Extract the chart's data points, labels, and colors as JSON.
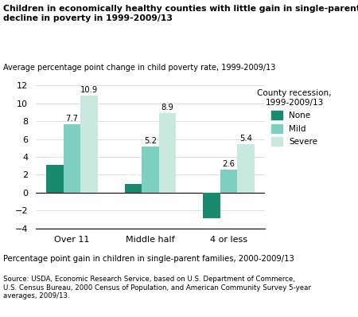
{
  "title": "Children in economically healthy counties with little gain in single-parent families had a\ndecline in poverty in 1999-2009/13",
  "ylabel": "Average percentage point change in child poverty rate, 1999-2009/13",
  "xlabel": "Percentage point gain in children in single-parent families, 2000-2009/13",
  "source": "Source: USDA, Economic Research Service, based on U.S. Department of Commerce,\nU.S. Census Bureau, 2000 Census of Population, and American Community Survey 5-year\naverages, 2009/13.",
  "legend_title": "County recession,\n1999-2009/13",
  "categories": [
    "Over 11",
    "Middle half",
    "4 or less"
  ],
  "series": {
    "None": [
      3.1,
      1.0,
      -2.9
    ],
    "Mild": [
      7.7,
      5.2,
      2.6
    ],
    "Severe": [
      10.9,
      8.9,
      5.4
    ]
  },
  "colors": {
    "None": "#1a8a6e",
    "Mild": "#7ecfbf",
    "Severe": "#c8e8e0"
  },
  "ylim": [
    -4,
    12
  ],
  "yticks": [
    -4,
    -2,
    0,
    2,
    4,
    6,
    8,
    10,
    12
  ],
  "bar_width": 0.22
}
